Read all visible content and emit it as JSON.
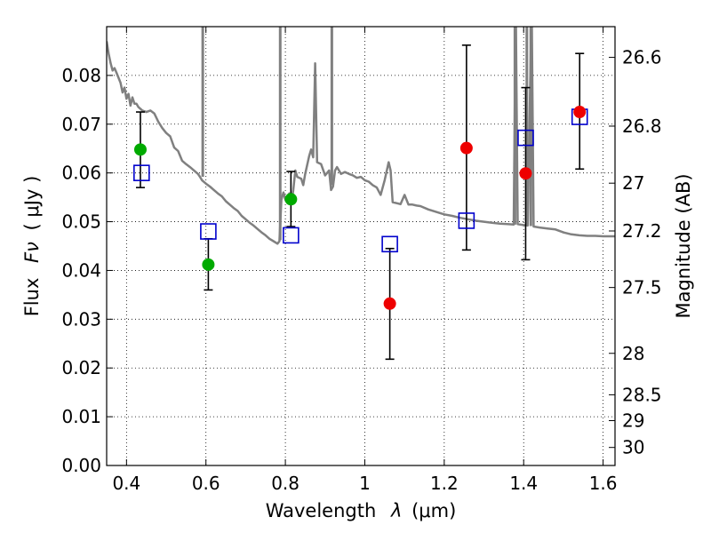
{
  "chart_data": {
    "type": "scatter",
    "xlabel_text": "Wavelength",
    "xlabel_symbol": "λ",
    "xlabel_unit": "(μm)",
    "ylabel_text": "Flux",
    "ylabel_symbol": "Fν",
    "ylabel_unit": "( μJy )",
    "y2label": "Magnitude (AB)",
    "xlim": [
      0.35,
      1.63
    ],
    "ylim": [
      0.0,
      0.09
    ],
    "grid": true,
    "x_ticks": [
      0.4,
      0.6,
      0.8,
      1.0,
      1.2,
      1.4,
      1.6
    ],
    "x_tick_labels": [
      "0.4",
      "0.6",
      "0.8",
      "1",
      "1.2",
      "1.4",
      "1.6"
    ],
    "y_ticks": [
      0.0,
      0.01,
      0.02,
      0.03,
      0.04,
      0.05,
      0.06,
      0.07,
      0.08
    ],
    "y_tick_labels": [
      "0.00",
      "0.01",
      "0.02",
      "0.03",
      "0.04",
      "0.05",
      "0.06",
      "0.07",
      "0.08"
    ],
    "y2_ticks": [
      {
        "label": "26.6",
        "flux": 0.0837
      },
      {
        "label": "26.8",
        "flux": 0.0696
      },
      {
        "label": "27",
        "flux": 0.0579
      },
      {
        "label": "27.2",
        "flux": 0.0481
      },
      {
        "label": "27.5",
        "flux": 0.0365
      },
      {
        "label": "28",
        "flux": 0.023
      },
      {
        "label": "28.5",
        "flux": 0.0145
      },
      {
        "label": "29",
        "flux": 0.0092
      },
      {
        "label": "30",
        "flux": 0.0037
      }
    ],
    "model_spectrum": {
      "color": "#808080",
      "points": [
        [
          0.35,
          0.087
        ],
        [
          0.355,
          0.0845
        ],
        [
          0.36,
          0.0825
        ],
        [
          0.365,
          0.081
        ],
        [
          0.37,
          0.0815
        ],
        [
          0.375,
          0.0805
        ],
        [
          0.38,
          0.0795
        ],
        [
          0.385,
          0.0785
        ],
        [
          0.39,
          0.0765
        ],
        [
          0.395,
          0.0775
        ],
        [
          0.4,
          0.0752
        ],
        [
          0.405,
          0.0762
        ],
        [
          0.41,
          0.0738
        ],
        [
          0.415,
          0.0755
        ],
        [
          0.42,
          0.0742
        ],
        [
          0.425,
          0.0742
        ],
        [
          0.43,
          0.0735
        ],
        [
          0.44,
          0.0728
        ],
        [
          0.45,
          0.0725
        ],
        [
          0.46,
          0.0728
        ],
        [
          0.47,
          0.0722
        ],
        [
          0.48,
          0.0705
        ],
        [
          0.49,
          0.0692
        ],
        [
          0.5,
          0.0682
        ],
        [
          0.51,
          0.0675
        ],
        [
          0.52,
          0.0652
        ],
        [
          0.53,
          0.0645
        ],
        [
          0.54,
          0.0625
        ],
        [
          0.55,
          0.0618
        ],
        [
          0.56,
          0.0612
        ],
        [
          0.57,
          0.0605
        ],
        [
          0.58,
          0.0598
        ],
        [
          0.585,
          0.0592
        ],
        [
          0.59,
          0.0585
        ],
        [
          0.6,
          0.0578
        ],
        [
          0.61,
          0.0572
        ],
        [
          0.62,
          0.0565
        ],
        [
          0.63,
          0.0558
        ],
        [
          0.64,
          0.0552
        ],
        [
          0.65,
          0.0542
        ],
        [
          0.66,
          0.0535
        ],
        [
          0.67,
          0.0528
        ],
        [
          0.68,
          0.0522
        ],
        [
          0.69,
          0.0512
        ],
        [
          0.7,
          0.0505
        ],
        [
          0.71,
          0.0498
        ],
        [
          0.72,
          0.0492
        ],
        [
          0.73,
          0.0485
        ],
        [
          0.74,
          0.0478
        ],
        [
          0.75,
          0.0472
        ],
        [
          0.76,
          0.0465
        ],
        [
          0.77,
          0.046
        ],
        [
          0.78,
          0.0455
        ],
        [
          0.785,
          0.046
        ],
        [
          0.79,
          0.0545
        ],
        [
          0.795,
          0.056
        ],
        [
          0.8,
          0.0545
        ],
        [
          0.81,
          0.0558
        ],
        [
          0.815,
          0.0538
        ],
        [
          0.82,
          0.0565
        ],
        [
          0.825,
          0.0605
        ],
        [
          0.83,
          0.0592
        ],
        [
          0.84,
          0.0588
        ],
        [
          0.845,
          0.0575
        ],
        [
          0.85,
          0.0598
        ],
        [
          0.86,
          0.0635
        ],
        [
          0.865,
          0.0648
        ],
        [
          0.87,
          0.0632
        ],
        [
          0.875,
          0.0825
        ],
        [
          0.88,
          0.0622
        ],
        [
          0.89,
          0.0618
        ],
        [
          0.9,
          0.0595
        ],
        [
          0.91,
          0.0605
        ],
        [
          0.915,
          0.0565
        ],
        [
          0.92,
          0.0572
        ],
        [
          0.925,
          0.0605
        ],
        [
          0.93,
          0.0612
        ],
        [
          0.94,
          0.0598
        ],
        [
          0.95,
          0.0602
        ],
        [
          0.96,
          0.0598
        ],
        [
          0.97,
          0.0595
        ],
        [
          0.98,
          0.059
        ],
        [
          0.99,
          0.0592
        ],
        [
          1.0,
          0.0585
        ],
        [
          1.01,
          0.0582
        ],
        [
          1.02,
          0.0575
        ],
        [
          1.03,
          0.057
        ],
        [
          1.04,
          0.0555
        ],
        [
          1.05,
          0.0585
        ],
        [
          1.06,
          0.0622
        ],
        [
          1.065,
          0.0605
        ],
        [
          1.07,
          0.054
        ],
        [
          1.08,
          0.0538
        ],
        [
          1.09,
          0.0536
        ],
        [
          1.1,
          0.0555
        ],
        [
          1.11,
          0.0535
        ],
        [
          1.12,
          0.0535
        ],
        [
          1.13,
          0.0533
        ],
        [
          1.14,
          0.0532
        ],
        [
          1.16,
          0.0525
        ],
        [
          1.18,
          0.052
        ],
        [
          1.2,
          0.0515
        ],
        [
          1.22,
          0.0512
        ],
        [
          1.24,
          0.0508
        ],
        [
          1.26,
          0.0505
        ],
        [
          1.28,
          0.0502
        ],
        [
          1.3,
          0.05
        ],
        [
          1.32,
          0.0498
        ],
        [
          1.34,
          0.0496
        ],
        [
          1.36,
          0.0495
        ],
        [
          1.375,
          0.0494
        ],
        [
          1.38,
          0.095
        ],
        [
          1.385,
          0.0495
        ],
        [
          1.4,
          0.0493
        ],
        [
          1.41,
          0.0492
        ],
        [
          1.42,
          0.095
        ],
        [
          1.425,
          0.049
        ],
        [
          1.44,
          0.0488
        ],
        [
          1.46,
          0.0486
        ],
        [
          1.48,
          0.0484
        ],
        [
          1.5,
          0.0478
        ],
        [
          1.52,
          0.0474
        ],
        [
          1.54,
          0.0472
        ],
        [
          1.56,
          0.0471
        ],
        [
          1.58,
          0.0471
        ],
        [
          1.6,
          0.047
        ],
        [
          1.63,
          0.047
        ]
      ],
      "spikes": [
        {
          "x": 0.592,
          "base": 0.0592
        },
        {
          "x": 0.787,
          "base": 0.0462
        },
        {
          "x": 0.917,
          "base": 0.0575
        },
        {
          "x": 1.378,
          "base": 0.0494
        },
        {
          "x": 1.408,
          "base": 0.0492
        },
        {
          "x": 1.418,
          "base": 0.0491
        }
      ]
    },
    "model_photometry": {
      "marker": "open-square",
      "color": "#0000cc",
      "points": [
        {
          "x": 0.438,
          "y": 0.06
        },
        {
          "x": 0.606,
          "y": 0.048
        },
        {
          "x": 0.814,
          "y": 0.0472
        },
        {
          "x": 1.063,
          "y": 0.0454
        },
        {
          "x": 1.256,
          "y": 0.0502
        },
        {
          "x": 1.405,
          "y": 0.0672
        },
        {
          "x": 1.541,
          "y": 0.0715
        }
      ]
    },
    "observed_detections": {
      "marker": "filled-circle",
      "color": "#00aa00",
      "points": [
        {
          "x": 0.435,
          "y": 0.0648,
          "err_low": 0.057,
          "err_high": 0.0725
        },
        {
          "x": 0.606,
          "y": 0.0412,
          "err_low": 0.036,
          "err_high": 0.0465
        },
        {
          "x": 0.814,
          "y": 0.0546,
          "err_low": 0.049,
          "err_high": 0.0603
        }
      ]
    },
    "observed_nondetections": {
      "marker": "filled-circle",
      "color": "#ee0000",
      "points": [
        {
          "x": 1.063,
          "y": 0.0332,
          "err_low": 0.0218,
          "err_high": 0.0445
        },
        {
          "x": 1.256,
          "y": 0.0651,
          "err_low": 0.0442,
          "err_high": 0.0862
        },
        {
          "x": 1.405,
          "y": 0.0599,
          "err_low": 0.0422,
          "err_high": 0.0775
        },
        {
          "x": 1.541,
          "y": 0.0725,
          "err_low": 0.0608,
          "err_high": 0.0845
        }
      ]
    }
  }
}
